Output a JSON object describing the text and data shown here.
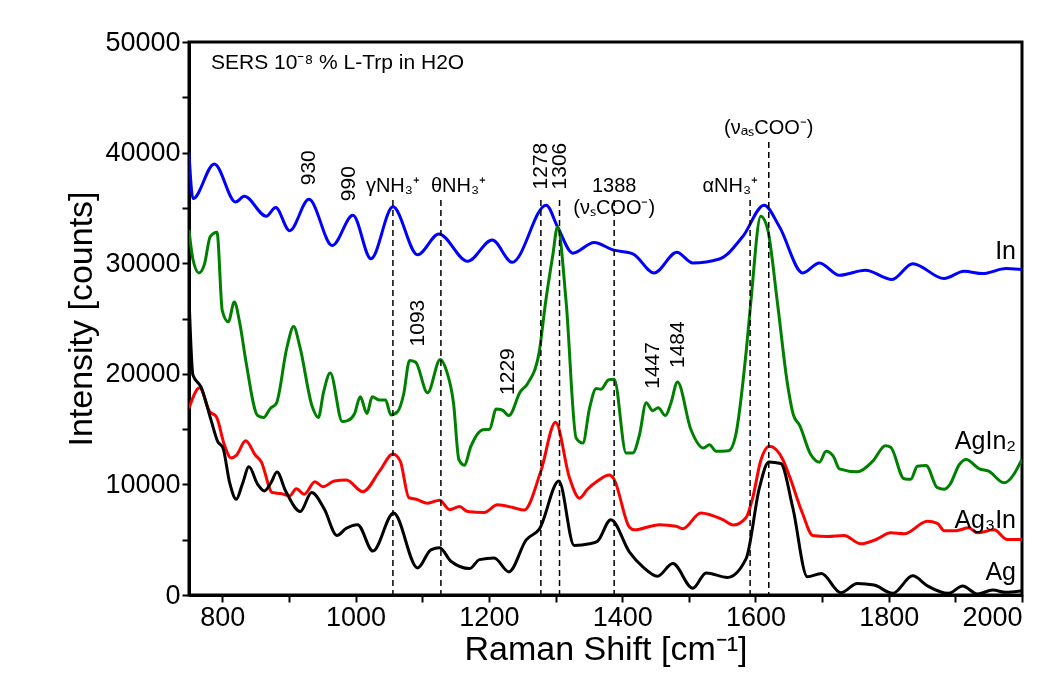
{
  "chart_data": {
    "type": "line",
    "xlabel": "Raman Shift [cm⁻¹]",
    "ylabel": "Intensity [counts]",
    "xlim": [
      750,
      2000
    ],
    "ylim": [
      0,
      50000
    ],
    "xticks": [
      800,
      {
        "value": 900,
        "label": null
      },
      1000,
      {
        "value": 1100,
        "label": null
      },
      1200,
      {
        "value": 1300,
        "label": null
      },
      1400,
      {
        "value": 1500,
        "label": null
      },
      1600,
      {
        "value": 1700,
        "label": null
      },
      1800,
      {
        "value": 1900,
        "label": null
      },
      2000
    ],
    "yticks": [
      0,
      {
        "value": 5000,
        "label": null
      },
      10000,
      {
        "value": 15000,
        "label": null
      },
      20000,
      {
        "value": 25000,
        "label": null
      },
      30000,
      {
        "value": 35000,
        "label": null
      },
      40000,
      {
        "value": 45000,
        "label": null
      },
      50000
    ],
    "series": [
      {
        "name": "In",
        "color": "#0000ff",
        "x": [
          750,
          756,
          788,
          820,
          833,
          866,
          880,
          901,
          930,
          965,
          996,
          1023,
          1056,
          1093,
          1125,
          1168,
          1205,
          1235,
          1286,
          1303,
          1326,
          1358,
          1386,
          1416,
          1448,
          1482,
          1506,
          1546,
          1581,
          1613,
          1636,
          1671,
          1696,
          1726,
          1765,
          1805,
          1836,
          1883,
          1913,
          1941,
          1976,
          2000
        ],
        "values": [
          40000,
          35840,
          38980,
          35540,
          36050,
          34250,
          35030,
          32940,
          35780,
          31600,
          34340,
          30400,
          35100,
          30760,
          32640,
          30170,
          32100,
          30080,
          35250,
          33300,
          30910,
          31870,
          31210,
          30850,
          29120,
          30980,
          30020,
          30380,
          32410,
          35240,
          33300,
          29120,
          30020,
          28910,
          29360,
          28520,
          29960,
          28610,
          29270,
          29060,
          29510,
          29420
        ]
      },
      {
        "name": "AgIn₂",
        "color": "#008000",
        "x": [
          750,
          756,
          765,
          773,
          782,
          792,
          800,
          809,
          818,
          826,
          836,
          853,
          862,
          872,
          881,
          897,
          907,
          916,
          935,
          944,
          952,
          962,
          980,
          988,
          998,
          1007,
          1017,
          1025,
          1036,
          1045,
          1053,
          1063,
          1072,
          1081,
          1090,
          1108,
          1127,
          1137,
          1147,
          1155,
          1163,
          1173,
          1191,
          1201,
          1211,
          1220,
          1230,
          1247,
          1258,
          1275,
          1285,
          1296,
          1303,
          1316,
          1331,
          1341,
          1351,
          1361,
          1368,
          1380,
          1388,
          1406,
          1416,
          1426,
          1436,
          1446,
          1454,
          1465,
          1473,
          1483,
          1503,
          1522,
          1531,
          1541,
          1560,
          1570,
          1586,
          1593,
          1608,
          1618,
          1633,
          1648,
          1657,
          1666,
          1683,
          1696,
          1706,
          1717,
          1726,
          1753,
          1776,
          1795,
          1803,
          1823,
          1833,
          1843,
          1856,
          1873,
          1883,
          1892,
          1906,
          1916,
          1936,
          1950,
          1973,
          2000
        ],
        "values": [
          33000,
          30310,
          29120,
          29870,
          32410,
          32790,
          25690,
          24700,
          26490,
          24640,
          20910,
          16220,
          16040,
          16870,
          17320,
          22400,
          24280,
          22550,
          17020,
          16040,
          18370,
          20070,
          15680,
          15770,
          16340,
          17920,
          16420,
          17920,
          17620,
          17620,
          16280,
          16580,
          18130,
          21210,
          21060,
          18280,
          21300,
          20160,
          17320,
          12250,
          11740,
          13440,
          14940,
          14990,
          16820,
          16730,
          16220,
          18370,
          19110,
          21800,
          26430,
          30760,
          33300,
          26430,
          14190,
          13740,
          16870,
          18660,
          18610,
          19470,
          19510,
          12840,
          12840,
          14490,
          17380,
          16670,
          16930,
          16220,
          17320,
          19260,
          14990,
          13290,
          13590,
          12990,
          13050,
          14340,
          21950,
          26430,
          34250,
          33150,
          26430,
          19110,
          16280,
          15380,
          12700,
          12010,
          12990,
          12540,
          11410,
          11140,
          12100,
          13500,
          13350,
          10510,
          10460,
          11650,
          11710,
          9700,
          9560,
          10010,
          11800,
          12250,
          11410,
          11200,
          10150,
          12250
        ]
      },
      {
        "name": "Ag₃In",
        "color": "#ff0000",
        "x": [
          750,
          766,
          781,
          791,
          803,
          813,
          821,
          835,
          850,
          858,
          875,
          888,
          901,
          911,
          923,
          939,
          951,
          968,
          986,
          1011,
          1036,
          1056,
          1067,
          1080,
          1091,
          1108,
          1126,
          1141,
          1156,
          1168,
          1193,
          1213,
          1236,
          1253,
          1278,
          1300,
          1321,
          1336,
          1348,
          1363,
          1381,
          1387,
          1411,
          1418,
          1456,
          1481,
          1491,
          1518,
          1551,
          1567,
          1586,
          1596,
          1608,
          1621,
          1641,
          1651,
          1671,
          1686,
          1708,
          1733,
          1758,
          1781,
          1803,
          1823,
          1858,
          1873,
          1883,
          1901,
          1920,
          1933,
          1958,
          1978,
          2000
        ],
        "values": [
          16870,
          18730,
          16580,
          16130,
          13590,
          12390,
          12630,
          13950,
          12610,
          12100,
          9260,
          9170,
          8960,
          9610,
          9110,
          10240,
          9790,
          10300,
          10390,
          9340,
          11200,
          12750,
          12100,
          8810,
          8660,
          8300,
          8570,
          7710,
          8000,
          7550,
          7460,
          8150,
          7910,
          7680,
          11200,
          15620,
          10600,
          8750,
          9560,
          10300,
          10840,
          10550,
          6120,
          5890,
          6360,
          6210,
          5980,
          7410,
          6810,
          6330,
          7010,
          8810,
          12160,
          13440,
          12250,
          10750,
          7320,
          5380,
          5290,
          5380,
          4630,
          5020,
          5620,
          5530,
          6660,
          6480,
          5820,
          5820,
          6070,
          5620,
          5890,
          5020,
          5020
        ]
      },
      {
        "name": "Ag",
        "color": "#000000",
        "x": [
          750,
          756,
          768,
          783,
          793,
          801,
          811,
          821,
          830,
          840,
          853,
          863,
          873,
          882,
          895,
          917,
          934,
          953,
          972,
          986,
          1003,
          1026,
          1057,
          1093,
          1113,
          1126,
          1143,
          1171,
          1186,
          1208,
          1230,
          1256,
          1276,
          1305,
          1328,
          1351,
          1363,
          1383,
          1411,
          1431,
          1453,
          1476,
          1506,
          1526,
          1558,
          1586,
          1606,
          1620,
          1638,
          1656,
          1678,
          1699,
          1728,
          1753,
          1778,
          1806,
          1836,
          1858,
          1890,
          1911,
          1933,
          1956,
          1976,
          2000
        ],
        "values": [
          27000,
          19860,
          18820,
          15830,
          13890,
          13290,
          10150,
          8660,
          10010,
          11590,
          10010,
          9410,
          10150,
          11110,
          9410,
          7550,
          9260,
          7770,
          5380,
          6030,
          6360,
          3970,
          7410,
          2450,
          4090,
          4270,
          3050,
          2390,
          3200,
          3340,
          2090,
          4990,
          5980,
          10300,
          4480,
          4630,
          4870,
          6810,
          3880,
          2540,
          1700,
          2840,
          600,
          2000,
          1590,
          3290,
          9700,
          12030,
          11890,
          7910,
          1640,
          1940,
          210,
          1050,
          900,
          150,
          1730,
          830,
          150,
          810,
          90,
          450,
          240,
          390
        ]
      }
    ],
    "ref_lines": [
      {
        "axis": "x",
        "value": 1056,
        "label": "γNH₃⁺",
        "line_style": "dashed"
      },
      {
        "axis": "x",
        "value": 1128,
        "label": "θNH₃⁺",
        "line_style": "dashed"
      },
      {
        "axis": "x",
        "value": 1278,
        "line_style": "dashed"
      },
      {
        "axis": "x",
        "value": 1306,
        "line_style": "dashed"
      },
      {
        "axis": "x",
        "value": 1388,
        "label": "1388\n(νₛCOO⁻)",
        "line_style": "dashed"
      },
      {
        "axis": "x",
        "value": 1592,
        "label": "αNH₃⁺",
        "line_style": "dashed"
      },
      {
        "axis": "x",
        "value": 1620,
        "label": "(νₐₛCOO⁻)",
        "line_style": "dashed"
      }
    ],
    "annotations": [
      "SERS 10⁻⁸ % L-Trp in H2O",
      {
        "text": "930",
        "x": 930,
        "y": 35780
      },
      {
        "text": "990",
        "x": 990,
        "y": 34340
      },
      {
        "text": "1093",
        "x": 1093,
        "y": 21210
      },
      {
        "text": "1229",
        "x": 1229,
        "y": 16820
      },
      {
        "text": "1278",
        "x": 1278,
        "y": 35400
      },
      {
        "text": "1306",
        "x": 1306,
        "y": 35400
      },
      {
        "text": "1447",
        "x": 1447,
        "y": 17380
      },
      {
        "text": "1484",
        "x": 1484,
        "y": 19260
      }
    ]
  }
}
